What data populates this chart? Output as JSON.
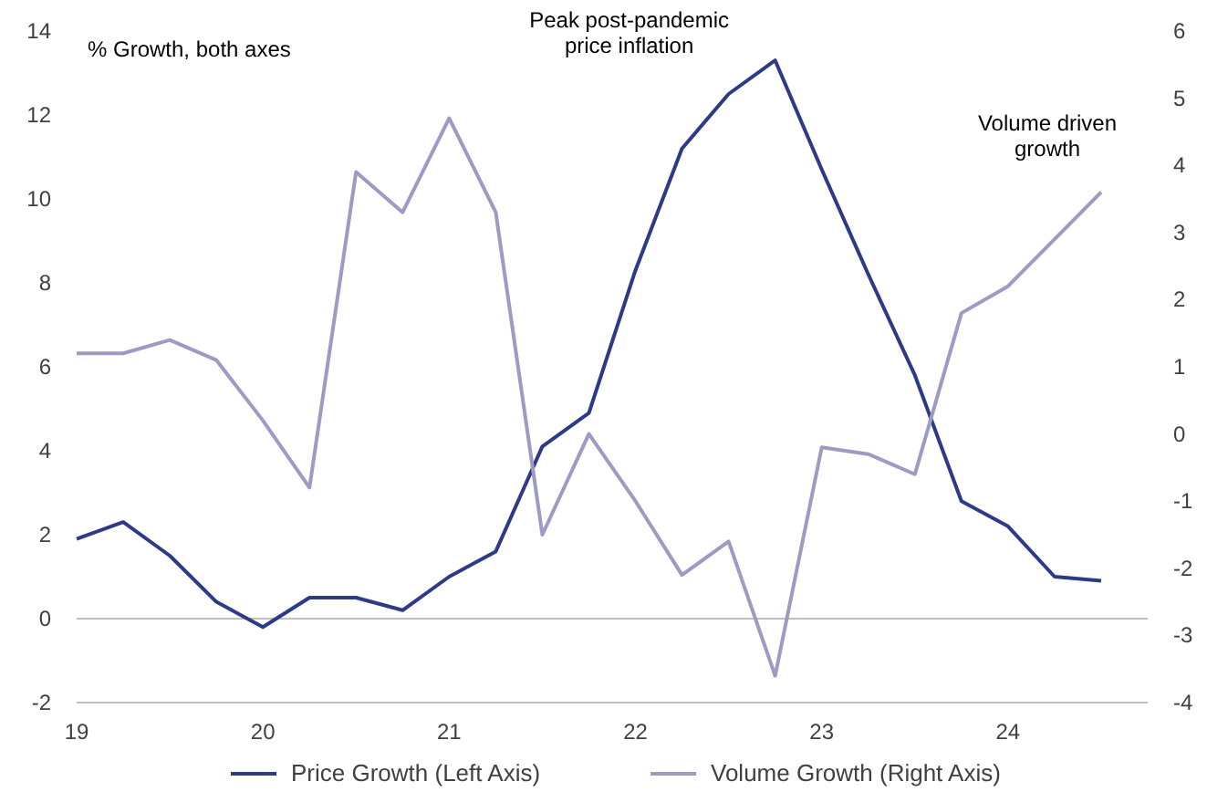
{
  "chart_data": {
    "type": "line",
    "x": [
      19,
      19.25,
      19.5,
      19.75,
      20,
      20.25,
      20.5,
      20.75,
      21,
      21.25,
      21.5,
      21.75,
      22,
      22.25,
      22.5,
      22.75,
      23,
      23.25,
      23.5,
      23.75,
      24,
      24.25,
      24.5
    ],
    "series": [
      {
        "name": "Price Growth (Left Axis)",
        "color": "#2e3a87",
        "values": [
          1.9,
          2.3,
          1.5,
          0.4,
          -0.2,
          0.5,
          0.5,
          0.2,
          1.0,
          1.6,
          4.1,
          4.9,
          8.3,
          11.2,
          12.5,
          13.3,
          10.7,
          8.2,
          5.8,
          2.8,
          2.2,
          1.0,
          0.9
        ]
      },
      {
        "name": "Volume Growth (Right Axis)",
        "color": "#9d9ac4",
        "axis": "y2",
        "values": [
          1.2,
          1.2,
          1.4,
          1.1,
          0.2,
          -0.8,
          3.9,
          3.3,
          4.7,
          3.3,
          -1.5,
          0.0,
          -1.0,
          -2.1,
          -1.6,
          -3.6,
          -0.2,
          -0.3,
          -0.6,
          1.8,
          2.2,
          2.9,
          3.6
        ]
      }
    ],
    "xlim": [
      19,
      24.75
    ],
    "xticks": [
      19,
      20,
      21,
      22,
      23,
      24
    ],
    "ylim": [
      -2,
      14
    ],
    "yticks": [
      -2,
      0,
      2,
      4,
      6,
      8,
      10,
      12,
      14
    ],
    "y2lim": [
      -4,
      6
    ],
    "y2ticks": [
      -4,
      -3,
      -2,
      -1,
      0,
      1,
      2,
      3,
      4,
      5,
      6
    ],
    "annotations": [
      "% Growth, both axes",
      {
        "text": "Peak post-pandemic price inflation",
        "x": 22.75,
        "y": 13.3
      },
      "Volume driven growth"
    ],
    "legend": "bottom",
    "ref_lines": [
      {
        "axis": "y",
        "value": 0,
        "color": "#bfbfbf"
      }
    ],
    "marker": "none",
    "line_style": "solid"
  }
}
